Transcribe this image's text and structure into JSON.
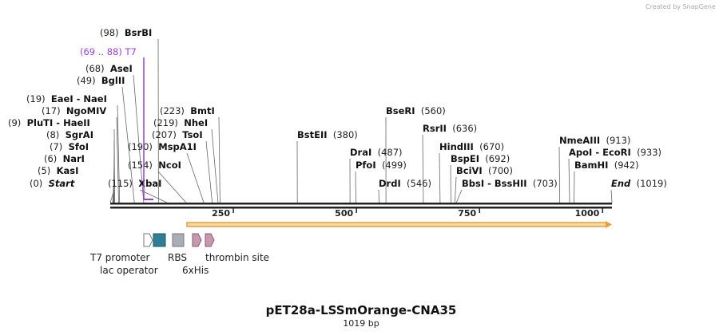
{
  "credit": "Created by SnapGene",
  "title": "pET28a-LSSmOrange-CNA35",
  "subtitle": "1019 bp",
  "sequence_length": 1019,
  "ruler_ticks": [
    250,
    500,
    750,
    1000
  ],
  "primer_region": {
    "label": "(69 .. 88)  T7",
    "start": 69,
    "end": 88,
    "color": "#9b3fd8"
  },
  "orf_color": "#e8a13a",
  "sites": [
    {
      "pos_text": "(0)",
      "name": "Start",
      "italic": true,
      "bp": 0
    },
    {
      "pos_text": "(5)",
      "name": "KasI",
      "bp": 5
    },
    {
      "pos_text": "(6)",
      "name": "NarI",
      "bp": 6
    },
    {
      "pos_text": "(7)",
      "name": "SfoI",
      "bp": 7
    },
    {
      "pos_text": "(8)",
      "name": "SgrAI",
      "bp": 8
    },
    {
      "pos_text": "(9)",
      "name": "PluTI  - HaeII",
      "bp": 9
    },
    {
      "pos_text": "(17)",
      "name": "NgoMIV",
      "bp": 17
    },
    {
      "pos_text": "(19)",
      "name": "EaeI  - NaeI",
      "bp": 19
    },
    {
      "pos_text": "(49)",
      "name": "BglII",
      "bp": 49
    },
    {
      "pos_text": "(68)",
      "name": "AseI",
      "bp": 68
    },
    {
      "pos_text": "(98)",
      "name": "BsrBI",
      "bp": 98
    },
    {
      "pos_text": "(115)",
      "name": "XbaI",
      "bp": 115
    },
    {
      "pos_text": "(154)",
      "name": "NcoI",
      "bp": 154
    },
    {
      "pos_text": "(190)",
      "name": "MspA1I",
      "bp": 190
    },
    {
      "pos_text": "(207)",
      "name": "TsoI",
      "bp": 207
    },
    {
      "pos_text": "(219)",
      "name": "NheI",
      "bp": 219
    },
    {
      "pos_text": "(223)",
      "name": "BmtI",
      "bp": 223
    },
    {
      "pos_text": "(380)",
      "name": "BstEII",
      "bp": 380
    },
    {
      "pos_text": "(487)",
      "name": "DraI",
      "bp": 487
    },
    {
      "pos_text": "(499)",
      "name": "PfoI",
      "bp": 499
    },
    {
      "pos_text": "(546)",
      "name": "DrdI",
      "bp": 546
    },
    {
      "pos_text": "(560)",
      "name": "BseRI",
      "bp": 560
    },
    {
      "pos_text": "(636)",
      "name": "RsrII",
      "bp": 636
    },
    {
      "pos_text": "(670)",
      "name": "HindIII",
      "bp": 670
    },
    {
      "pos_text": "(692)",
      "name": "BspEI",
      "bp": 692
    },
    {
      "pos_text": "(700)",
      "name": "BciVI",
      "bp": 700
    },
    {
      "pos_text": "(703)",
      "name": "BbsI  - BssHII",
      "bp": 703
    },
    {
      "pos_text": "(913)",
      "name": "NmeAIII",
      "bp": 913
    },
    {
      "pos_text": "(933)",
      "name": "ApoI  - EcoRI",
      "bp": 933
    },
    {
      "pos_text": "(942)",
      "name": "BamHI",
      "bp": 942
    },
    {
      "pos_text": "(1019)",
      "name": "End",
      "italic": true,
      "bp": 1019
    }
  ],
  "features": [
    {
      "name": "T7 promoter",
      "type": "promoter",
      "color": "#ffffff"
    },
    {
      "name": "lac operator",
      "type": "box",
      "color": "#2e7f96"
    },
    {
      "name": "RBS",
      "type": "box",
      "color": "#a9adb7"
    },
    {
      "name": "6xHis",
      "type": "arrow",
      "color": "#c898b0"
    },
    {
      "name": "thrombin site",
      "type": "arrow",
      "color": "#c898b0"
    }
  ]
}
